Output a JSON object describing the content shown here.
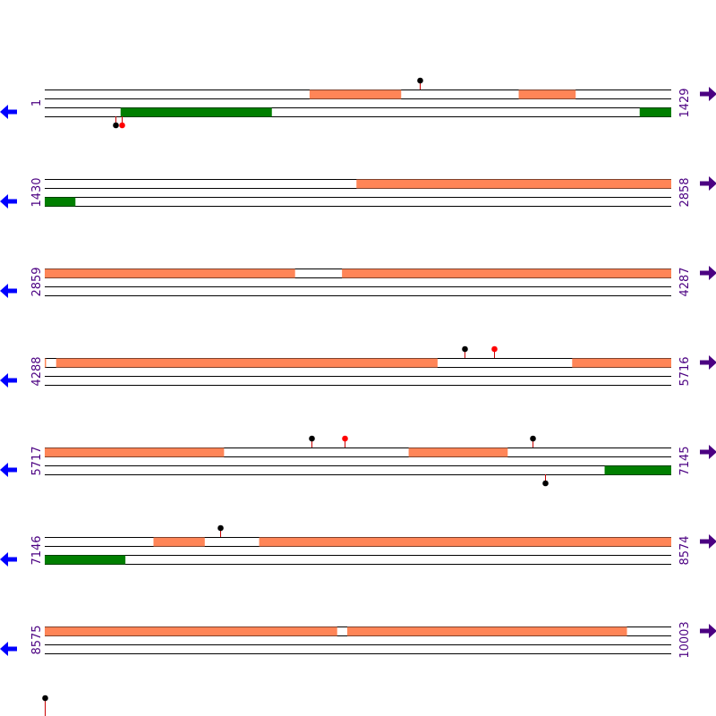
{
  "colors": {
    "forward_feature": "#ff8557",
    "reverse_feature": "#007f00",
    "strand_line": "#000000",
    "stem": "#c80000",
    "marker_black": "#000000",
    "marker_red": "#ff0000",
    "forward_arrow": "#4b0082",
    "reverse_arrow": "#0000ff",
    "position_label": "#4b0082"
  },
  "icons": {
    "forward": "arrow-right-icon",
    "reverse": "arrow-left-icon"
  },
  "rows": [
    {
      "start": "1",
      "end": "1429",
      "range": [
        1,
        1429
      ],
      "forward": [
        [
          605,
          813
        ],
        [
          1082,
          1211
        ]
      ],
      "reverse": [
        [
          174,
          518
        ],
        [
          1358,
          1429
        ]
      ],
      "markers": [
        {
          "strand": "top",
          "pos": 856,
          "color": "black"
        },
        {
          "strand": "bottom",
          "pos": 162,
          "color": "black"
        },
        {
          "strand": "bottom",
          "pos": 177,
          "color": "red"
        }
      ]
    },
    {
      "start": "1430",
      "end": "2858",
      "range": [
        1430,
        2858
      ],
      "forward": [
        [
          2141,
          2858
        ]
      ],
      "reverse": [
        [
          1430,
          1499
        ]
      ],
      "markers": []
    },
    {
      "start": "2859",
      "end": "4287",
      "range": [
        2859,
        4287
      ],
      "forward": [
        [
          2859,
          3429
        ],
        [
          3537,
          4287
        ]
      ],
      "reverse": [],
      "markers": []
    },
    {
      "start": "4288",
      "end": "5716",
      "range": [
        4288,
        5716
      ],
      "forward": [
        [
          4288,
          4290
        ],
        [
          4314,
          5183
        ],
        [
          5491,
          5716
        ]
      ],
      "reverse": [],
      "markers": [
        {
          "strand": "top",
          "pos": 5245,
          "color": "black"
        },
        {
          "strand": "top",
          "pos": 5312,
          "color": "red"
        }
      ]
    },
    {
      "start": "5717",
      "end": "7145",
      "range": [
        5717,
        7145
      ],
      "forward": [
        [
          5717,
          6125
        ],
        [
          6547,
          6772
        ]
      ],
      "reverse": [
        [
          6994,
          7145
        ]
      ],
      "markers": [
        {
          "strand": "top",
          "pos": 6326,
          "color": "black"
        },
        {
          "strand": "top",
          "pos": 6401,
          "color": "red"
        },
        {
          "strand": "top",
          "pos": 6829,
          "color": "black"
        },
        {
          "strand": "bottom",
          "pos": 6858,
          "color": "black"
        }
      ]
    },
    {
      "start": "7146",
      "end": "8574",
      "range": [
        7146,
        8574
      ],
      "forward": [
        [
          7394,
          7510
        ],
        [
          7635,
          8574
        ]
      ],
      "reverse": [
        [
          7146,
          7329
        ]
      ],
      "markers": [
        {
          "strand": "top",
          "pos": 7547,
          "color": "black"
        }
      ]
    },
    {
      "start": "8575",
      "end": "10003",
      "range": [
        8575,
        10003
      ],
      "forward": [
        [
          8575,
          9241
        ],
        [
          9265,
          9902
        ]
      ],
      "reverse": [],
      "markers": []
    }
  ],
  "tail_markers": [
    {
      "pos": 10004,
      "color": "black"
    }
  ]
}
